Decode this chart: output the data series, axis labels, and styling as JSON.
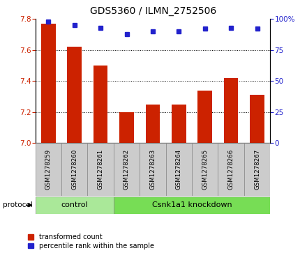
{
  "title": "GDS5360 / ILMN_2752506",
  "samples": [
    "GSM1278259",
    "GSM1278260",
    "GSM1278261",
    "GSM1278262",
    "GSM1278263",
    "GSM1278264",
    "GSM1278265",
    "GSM1278266",
    "GSM1278267"
  ],
  "bar_values": [
    7.77,
    7.62,
    7.5,
    7.2,
    7.25,
    7.25,
    7.34,
    7.42,
    7.31
  ],
  "percentile_values": [
    98,
    95,
    93,
    88,
    90,
    90,
    92,
    93,
    92
  ],
  "ylim_left": [
    7.0,
    7.8
  ],
  "ylim_right": [
    0,
    100
  ],
  "yticks_left": [
    7.0,
    7.2,
    7.4,
    7.6,
    7.8
  ],
  "yticks_right": [
    0,
    25,
    50,
    75,
    100
  ],
  "bar_color": "#cc2200",
  "dot_color": "#2222cc",
  "control_samples": 3,
  "control_label": "control",
  "knockdown_label": "Csnk1a1 knockdown",
  "protocol_label": "protocol",
  "legend_bar_label": "transformed count",
  "legend_dot_label": "percentile rank within the sample",
  "control_bg": "#aae899",
  "knockdown_bg": "#77dd55",
  "sample_bg": "#cccccc",
  "title_fontsize": 10,
  "tick_fontsize": 7.5,
  "label_fontsize": 7
}
